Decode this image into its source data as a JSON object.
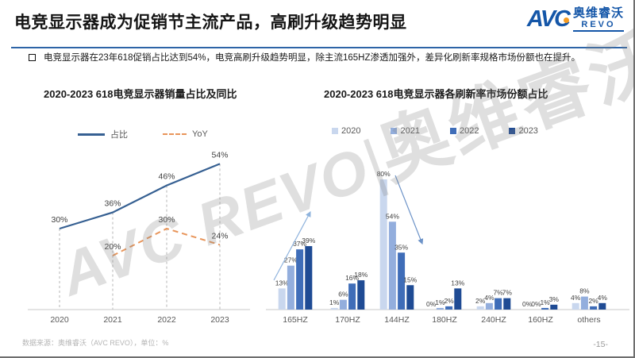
{
  "header": {
    "title": "电竞显示器成为促销节主流产品，高刷升级趋势明显",
    "logo": {
      "avc": "AVC",
      "cn": "奥维睿沃",
      "revo": "REVO"
    },
    "accent_color": "#2d64a7"
  },
  "bullet": "电竞显示器在23年618促销占比达到54%，电竞高刷升级趋势明显，除主流165HZ渗透加强外，差异化刷新率规格市场份额也在提升。",
  "watermark": {
    "latin": "AVC REVO",
    "sep": "|",
    "cn": "奥维睿沃"
  },
  "footer": {
    "source": "数据来源：奥维睿沃（AVC REVO），单位：%",
    "page": "-15-"
  },
  "chart_data": [
    {
      "type": "line",
      "title": "2020-2023  618电竞显示器销量占比及同比",
      "categories": [
        "2020",
        "2021",
        "2022",
        "2023"
      ],
      "series": [
        {
          "name": "占比",
          "values": [
            30,
            36,
            46,
            54
          ],
          "color": "#366092",
          "style": "solid"
        },
        {
          "name": "YoY",
          "values": [
            null,
            20,
            30,
            24
          ],
          "color": "#e8955a",
          "style": "dashed"
        }
      ],
      "unit": "%",
      "ylim": [
        0,
        63
      ],
      "grid": false,
      "legend_position": "top",
      "annotations": "dashed droplines from 占比 points to x-axis"
    },
    {
      "type": "bar",
      "title": "2020-2023  618电竞显示器各刷新率市场份额占比",
      "categories": [
        "165HZ",
        "170HZ",
        "144HZ",
        "180HZ",
        "240HZ",
        "160HZ",
        "others"
      ],
      "series": [
        {
          "name": "2020",
          "color": "#c9d7ee",
          "values": [
            13,
            1,
            80,
            0,
            2,
            0,
            4
          ]
        },
        {
          "name": "2021",
          "color": "#93aedd",
          "values": [
            27,
            6,
            54,
            1,
            4,
            0,
            8
          ]
        },
        {
          "name": "2022",
          "color": "#3f6db8",
          "values": [
            37,
            16,
            35,
            2,
            7,
            1,
            2
          ]
        },
        {
          "name": "2023",
          "color": "#1f4b94",
          "values": [
            39,
            18,
            15,
            13,
            7,
            3,
            4
          ]
        }
      ],
      "unit": "%",
      "ylim": [
        0,
        85
      ],
      "grid": false,
      "legend_position": "top",
      "annotations": "upward trend arrow over 165HZ group, downward trend arrow from 144HZ 80% bar"
    }
  ]
}
